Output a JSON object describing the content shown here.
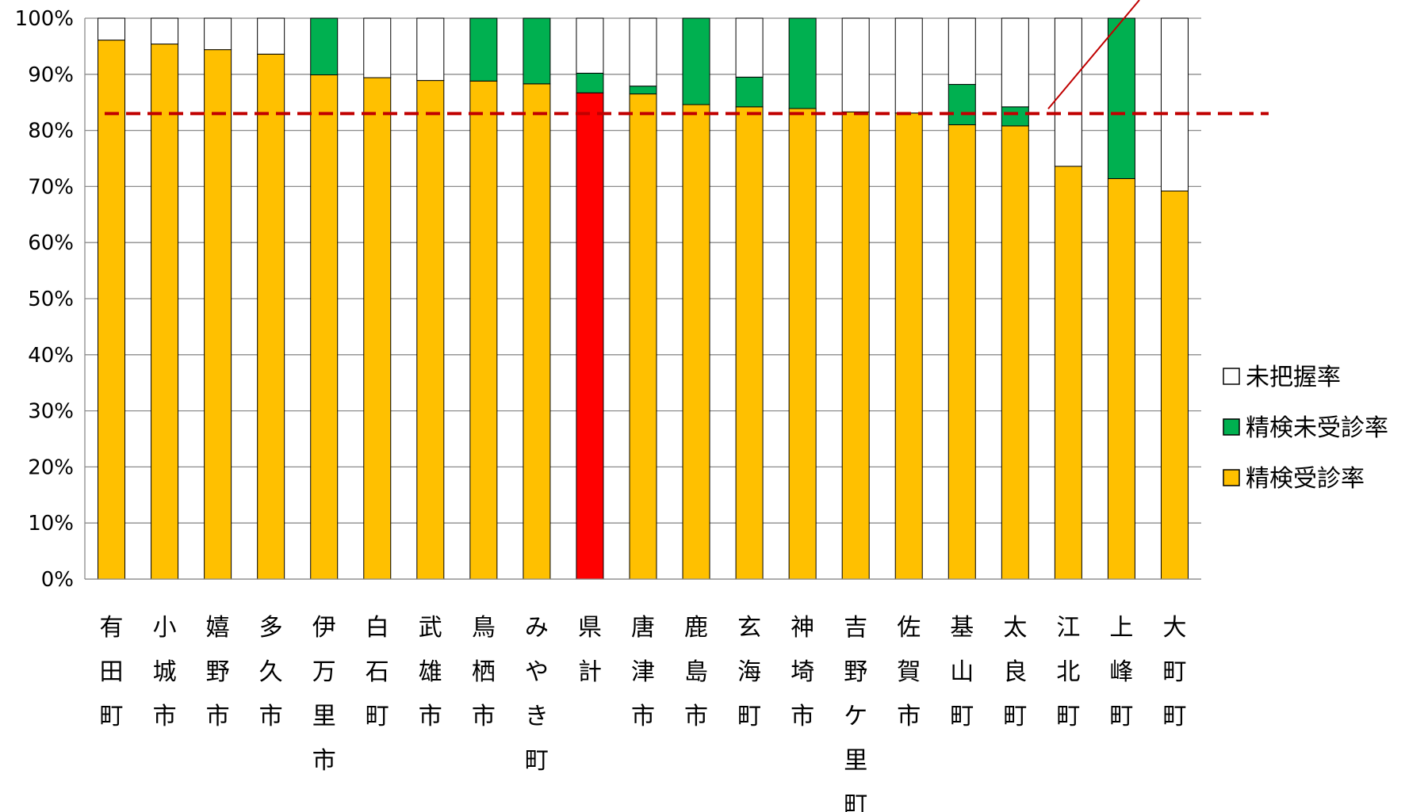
{
  "chart_data": {
    "type": "bar",
    "stacked": true,
    "categories": [
      "有田町",
      "小城市",
      "嬉野市",
      "多久市",
      "伊万里市",
      "白石町",
      "武雄市",
      "鳥栖市",
      "みやき町",
      "県計",
      "唐津市",
      "鹿島市",
      "玄海町",
      "神埼市",
      "吉野ケ里町",
      "佐賀市",
      "基山町",
      "太良町",
      "江北町",
      "上峰町",
      "大町町"
    ],
    "highlight_category": "県計",
    "series": [
      {
        "name": "精検受診率",
        "color": "#FFC000",
        "values": [
          96.1,
          95.4,
          94.4,
          93.6,
          89.9,
          89.4,
          88.9,
          88.8,
          88.3,
          86.7,
          86.5,
          84.6,
          84.2,
          83.9,
          83.3,
          83.1,
          81.0,
          80.8,
          73.6,
          71.4,
          69.2
        ]
      },
      {
        "name": "精検未受診率",
        "color": "#00B050",
        "values": [
          0,
          0,
          0,
          0,
          10.1,
          0,
          0,
          11.2,
          11.7,
          3.5,
          1.4,
          15.4,
          5.3,
          16.1,
          0,
          0,
          7.2,
          3.4,
          0,
          28.6,
          0
        ]
      },
      {
        "name": "未把握率",
        "color": "#FFFFFF",
        "values": [
          3.9,
          4.6,
          5.6,
          6.4,
          0,
          10.6,
          11.1,
          0,
          0,
          9.8,
          12.1,
          0,
          10.5,
          0,
          16.7,
          16.9,
          11.8,
          15.8,
          26.4,
          0,
          30.8
        ]
      }
    ],
    "highlight_color": "#FF0000",
    "yticks": [
      "0%",
      "10%",
      "20%",
      "30%",
      "40%",
      "50%",
      "60%",
      "70%",
      "80%",
      "90%",
      "100%"
    ],
    "ylim": [
      0,
      100
    ],
    "reference_line": {
      "value": 83,
      "color": "#C00000",
      "style": "dashed"
    },
    "legend": {
      "placement": "right",
      "items": [
        {
          "label": "未把握率",
          "color": "#FFFFFF"
        },
        {
          "label": "精検未受診率",
          "color": "#00B050"
        },
        {
          "label": "精検受診率",
          "color": "#FFC000"
        }
      ]
    },
    "grid": true
  }
}
